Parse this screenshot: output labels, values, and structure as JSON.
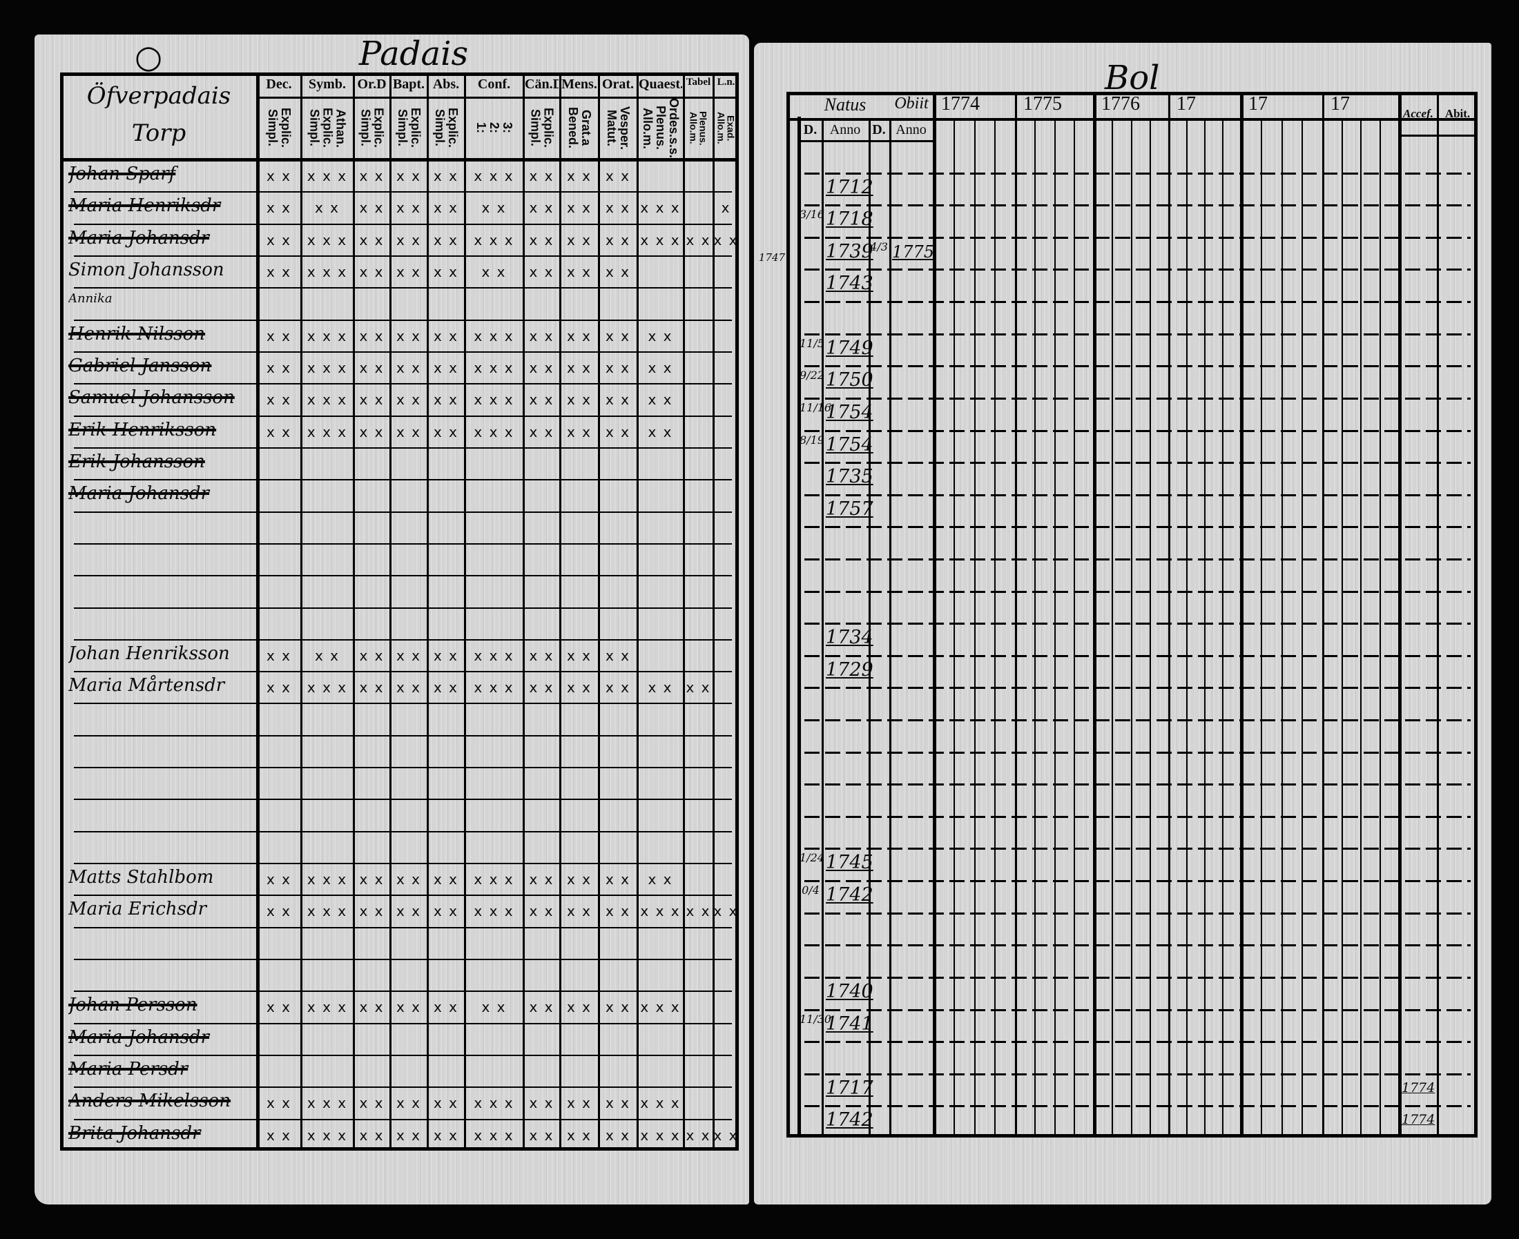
{
  "left_page": {
    "title": "Padais",
    "village": "Öfverpadais Torp",
    "columns": [
      {
        "label": "Dec.",
        "sub": "Explic.\nSimpl."
      },
      {
        "label": "Symb.",
        "sub": "Athan.\nExplic.\nSimpl."
      },
      {
        "label": "Or.D",
        "sub": "Explic.\nSimpl."
      },
      {
        "label": "Bapt.",
        "sub": "Explic.\nSimpl."
      },
      {
        "label": "Abs.",
        "sub": "Explic.\nSimpl."
      },
      {
        "label": "Conf.",
        "sub": "3:\n2:\n1:"
      },
      {
        "label": "Cän.D",
        "sub": "Explic.\nSimpl."
      },
      {
        "label": "Mens.",
        "sub": "Grat.a\nBened."
      },
      {
        "label": "Orat.",
        "sub": "Vesper.\nMatut."
      },
      {
        "label": "Quaest.",
        "sub": "Ordes.s.s.\nPlenus.\nAllo.m."
      },
      {
        "label": "Tabel",
        "sub": "Plenus.\nAllo.m."
      },
      {
        "label": "L.n.",
        "sub": "Exad.\nAllo.m."
      }
    ],
    "rows": [
      {
        "row": 0,
        "name": "Johan Sparf",
        "struck": true,
        "marks": [
          "x x",
          "x x x",
          "x x",
          "x x",
          "x x",
          "x x x",
          "x x",
          "x x",
          "x x",
          "",
          "",
          ""
        ]
      },
      {
        "row": 1,
        "name": "Maria Henriksdr",
        "struck": true,
        "marks": [
          "x x",
          "x x",
          "x x",
          "x x",
          "x x",
          "x x",
          "x x",
          "x x",
          "x x",
          "x x x",
          "",
          "x"
        ]
      },
      {
        "row": 2,
        "name": "Maria Johansdr",
        "struck": true,
        "marks": [
          "x x",
          "x x x",
          "x x",
          "x x",
          "x x",
          "x x x",
          "x x",
          "x x",
          "x x",
          "x x x",
          "x x",
          "x x"
        ]
      },
      {
        "row": 3,
        "name": "Simon Johansson",
        "struck": false,
        "marks": [
          "x x",
          "x x x",
          "x x",
          "x x",
          "x x",
          "x x",
          "x x",
          "x x",
          "x x",
          "",
          "",
          ""
        ]
      },
      {
        "row": 4,
        "name": "Annika",
        "struck": false,
        "marks": [
          "",
          "",
          "",
          "",
          "",
          "",
          "",
          "",
          "",
          "",
          "",
          ""
        ]
      },
      {
        "row": 5,
        "name": "Henrik Nilsson",
        "struck": true,
        "marks": [
          "x x",
          "x x x",
          "x x",
          "x x",
          "x x",
          "x x x",
          "x x",
          "x x",
          "x x",
          "x x",
          "",
          ""
        ]
      },
      {
        "row": 6,
        "name": "Gabriel Jansson",
        "struck": true,
        "marks": [
          "x x",
          "x x x",
          "x x",
          "x x",
          "x x",
          "x x x",
          "x x",
          "x x",
          "x x",
          "x x",
          "",
          ""
        ]
      },
      {
        "row": 7,
        "name": "Samuel Johansson",
        "struck": true,
        "marks": [
          "x x",
          "x x x",
          "x x",
          "x x",
          "x x",
          "x x x",
          "x x",
          "x x",
          "x x",
          "x x",
          "",
          ""
        ]
      },
      {
        "row": 8,
        "name": "Erik Henriksson",
        "struck": true,
        "marks": [
          "x x",
          "x x x",
          "x x",
          "x x",
          "x x",
          "x x x",
          "x x",
          "x x",
          "x x",
          "x x",
          "",
          ""
        ]
      },
      {
        "row": 9,
        "name": "Erik Johansson",
        "struck": true,
        "marks": [
          "",
          "",
          "",
          "",
          "",
          "",
          "",
          "",
          "",
          "",
          "",
          ""
        ]
      },
      {
        "row": 10,
        "name": "Maria Johansdr",
        "struck": true,
        "marks": [
          "",
          "",
          "",
          "",
          "",
          "",
          "",
          "",
          "",
          "",
          "",
          ""
        ]
      },
      {
        "row": 15,
        "name": "Johan Henriksson",
        "struck": false,
        "marks": [
          "x x",
          "x x",
          "x x",
          "x x",
          "x x",
          "x x x",
          "x x",
          "x x",
          "x x",
          "",
          "",
          ""
        ]
      },
      {
        "row": 16,
        "name": "Maria Mårtensdr",
        "struck": false,
        "marks": [
          "x x",
          "x x x",
          "x x",
          "x x",
          "x x",
          "x x x",
          "x x",
          "x x",
          "x x",
          "x x",
          "x x",
          ""
        ]
      },
      {
        "row": 22,
        "name": "Matts Stahlbom",
        "struck": false,
        "marks": [
          "x x",
          "x x x",
          "x x",
          "x x",
          "x x",
          "x x x",
          "x x",
          "x x",
          "x x",
          "x x",
          "",
          ""
        ]
      },
      {
        "row": 23,
        "name": "Maria Erichsdr",
        "struck": false,
        "marks": [
          "x x",
          "x x x",
          "x x",
          "x x",
          "x x",
          "x x x",
          "x x",
          "x x",
          "x x",
          "x x x",
          "x x",
          "x x"
        ]
      },
      {
        "row": 26,
        "name": "Johan Persson",
        "struck": true,
        "marks": [
          "x x",
          "x x x",
          "x x",
          "x x",
          "x x",
          "x x",
          "x x",
          "x x",
          "x x",
          "x x x",
          "",
          ""
        ]
      },
      {
        "row": 27,
        "name": "Maria Johansdr",
        "struck": true,
        "marks": [
          "",
          "",
          "",
          "",
          "",
          "",
          "",
          "",
          "",
          "",
          "",
          ""
        ]
      },
      {
        "row": 28,
        "name": "Maria Persdr",
        "struck": true,
        "marks": [
          "",
          "",
          "",
          "",
          "",
          "",
          "",
          "",
          "",
          "",
          "",
          ""
        ]
      },
      {
        "row": 29,
        "name": "Anders Mikelsson",
        "struck": true,
        "marks": [
          "x x",
          "x x x",
          "x x",
          "x x",
          "x x",
          "x x x",
          "x x",
          "x x",
          "x x",
          "x x x",
          "",
          ""
        ]
      },
      {
        "row": 30,
        "name": "Brita Johansdr",
        "struck": true,
        "marks": [
          "x x",
          "x x x",
          "x x",
          "x x",
          "x x",
          "x x x",
          "x x",
          "x x",
          "x x",
          "x x x",
          "x x",
          "x x"
        ]
      }
    ]
  },
  "right_page": {
    "title": "Bol",
    "headers": {
      "natus": "Natus",
      "obiit": "Obiit",
      "d": "D.",
      "anno": "Anno",
      "years": [
        "1774",
        "1775",
        "1776",
        "17",
        "17",
        "17"
      ],
      "accessit": "Accef.",
      "abiit": "Abit."
    },
    "margin_note": "1747",
    "entries": [
      {
        "row": 1,
        "natus_anno": "1712"
      },
      {
        "row": 2,
        "natus_day": "3/16",
        "natus_anno": "1718"
      },
      {
        "row": 3,
        "natus_anno": "1739",
        "obiit_day": "4/3",
        "obiit_anno": "1775"
      },
      {
        "row": 4,
        "natus_anno": "1743"
      },
      {
        "row": 6,
        "natus_day": "11/5",
        "natus_anno": "1749"
      },
      {
        "row": 7,
        "natus_day": "9/22",
        "natus_anno": "1750"
      },
      {
        "row": 8,
        "natus_day": "11/16",
        "natus_anno": "1754"
      },
      {
        "row": 9,
        "natus_day": "8/19",
        "natus_anno": "1754"
      },
      {
        "row": 10,
        "natus_anno": "1735"
      },
      {
        "row": 11,
        "natus_anno": "1757"
      },
      {
        "row": 15,
        "natus_anno": "1734"
      },
      {
        "row": 16,
        "natus_anno": "1729"
      },
      {
        "row": 22,
        "natus_day": "1/24",
        "natus_anno": "1745"
      },
      {
        "row": 23,
        "natus_day": "0/4",
        "natus_anno": "1742"
      },
      {
        "row": 26,
        "natus_anno": "1740"
      },
      {
        "row": 27,
        "natus_day": "11/30",
        "natus_anno": "1741"
      },
      {
        "row": 29,
        "natus_anno": "1717",
        "accessit": "1774"
      },
      {
        "row": 30,
        "natus_anno": "1742",
        "accessit": "1774"
      }
    ]
  }
}
